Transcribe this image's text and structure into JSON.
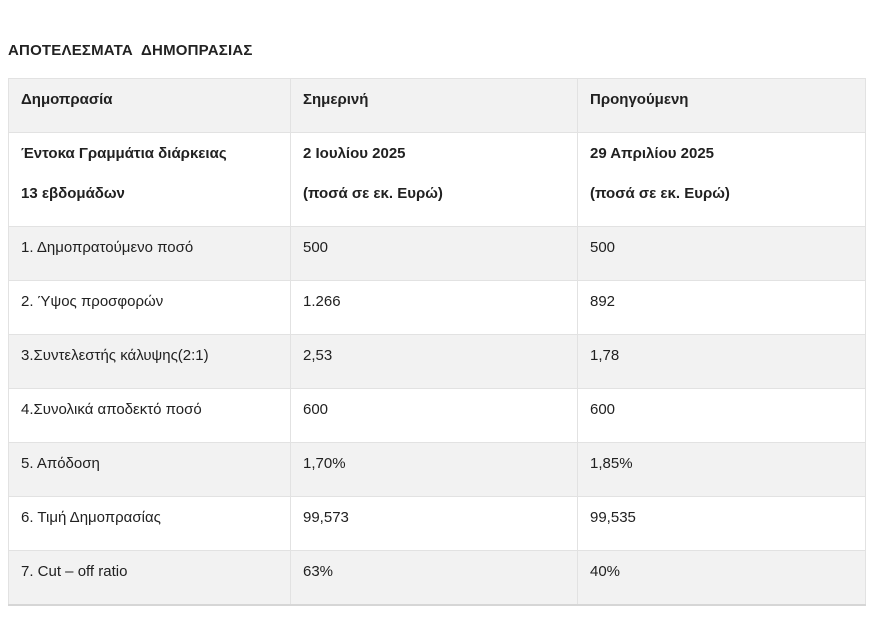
{
  "page": {
    "title": "ΑΠΟΤΕΛΕΣΜΑΤΑ  ΔΗΜΟΠΡΑΣΙΑΣ"
  },
  "table": {
    "columns": [
      "Δημοπρασία",
      "Σημερινή",
      "Προηγούμενη"
    ],
    "instrument": {
      "line1": "Έντοκα Γραμμάτια διάρκειας",
      "line2": "13 εβδομάδων"
    },
    "current_auction": {
      "date": "2 Ιουλίου 2025",
      "unit_note": "(ποσά σε εκ. Ευρώ)"
    },
    "previous_auction": {
      "date": "29 Απριλίου 2025",
      "unit_note": "(ποσά σε εκ. Ευρώ)"
    },
    "rows": [
      {
        "label": "1. Δημοπρατούμενο ποσό",
        "current": "500",
        "previous": "500"
      },
      {
        "label": "2. Ύψος προσφορών",
        "current": "1.266",
        "previous": "892"
      },
      {
        "label": "3.Συντελεστής κάλυψης(2:1)",
        "current": "2,53",
        "previous": "1,78"
      },
      {
        "label": "4.Συνολικά αποδεκτό ποσό",
        "current": "600",
        "previous": "600"
      },
      {
        "label": "5. Απόδοση",
        "current": "1,70%",
        "previous": "1,85%"
      },
      {
        "label": "6. Τιμή Δημοπρασίας",
        "current": "99,573",
        "previous": "99,535"
      },
      {
        "label": "7. Cut – off ratio",
        "current": "63%",
        "previous": "40%"
      }
    ],
    "colors": {
      "stripe_row_background": "#f2f2f2",
      "border": "#e2e2e2",
      "text": "#212121"
    }
  }
}
